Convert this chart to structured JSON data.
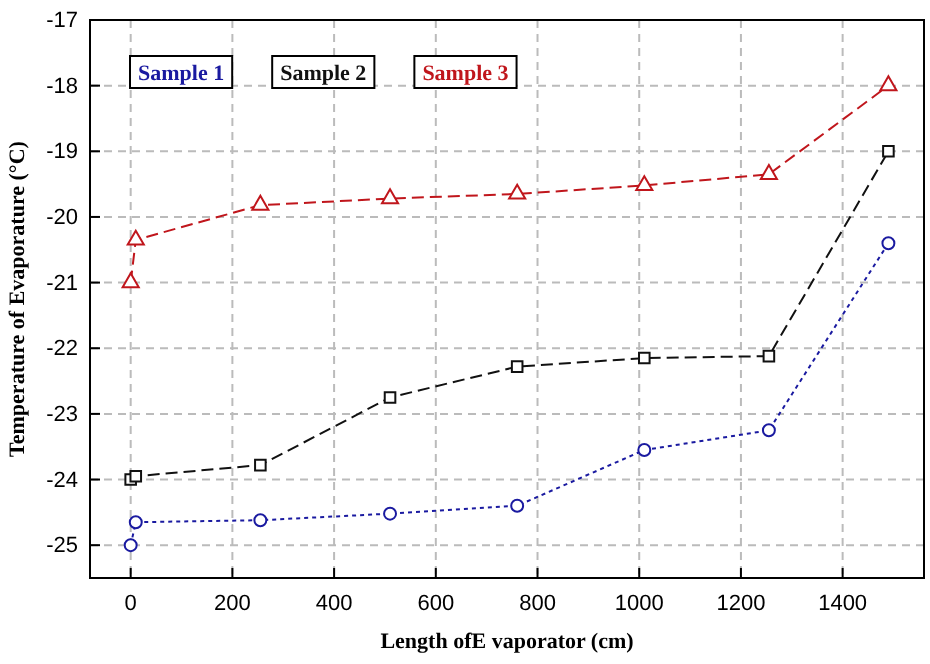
{
  "chart_data": {
    "type": "line",
    "xlabel": "Length ofE vaporator  (cm)",
    "ylabel": "Temperature of Evaporature (°C)",
    "xlim": [
      -80,
      1560
    ],
    "xticks": [
      0,
      200,
      400,
      600,
      800,
      1000,
      1200,
      1400
    ],
    "ylim": [
      -25.5,
      -17
    ],
    "yticks": [
      -25,
      -24,
      -23,
      -22,
      -21,
      -20,
      -19,
      -18,
      -17
    ],
    "grid": true,
    "legend": "top left",
    "series": [
      {
        "name": "Sample 1",
        "color": "#1a1aa0",
        "marker": "circle",
        "line_style": "dotted",
        "x": [
          0,
          10,
          255,
          510,
          760,
          1010,
          1255,
          1490
        ],
        "values": [
          -25.0,
          -24.65,
          -24.62,
          -24.52,
          -24.4,
          -23.55,
          -23.25,
          -20.4
        ]
      },
      {
        "name": "Sample 2",
        "color": "#111111",
        "marker": "square",
        "line_style": "dashed",
        "x": [
          0,
          10,
          255,
          510,
          760,
          1010,
          1255,
          1490
        ],
        "values": [
          -24.0,
          -23.95,
          -23.78,
          -22.75,
          -22.28,
          -22.15,
          -22.12,
          -19.0
        ]
      },
      {
        "name": "Sample 3",
        "color": "#c0161c",
        "marker": "triangle",
        "line_style": "dashed",
        "x": [
          0,
          10,
          255,
          510,
          760,
          1010,
          1255,
          1490
        ],
        "values": [
          -21.0,
          -20.35,
          -19.82,
          -19.72,
          -19.65,
          -19.52,
          -19.35,
          -18.0
        ]
      }
    ]
  }
}
